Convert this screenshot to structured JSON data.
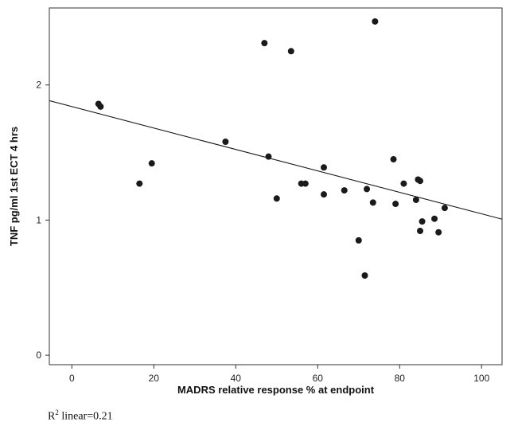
{
  "chart_data": {
    "type": "scatter",
    "xlabel": "MADRS relative response % at endpoint",
    "ylabel": "TNF pg/ml 1st ECT 4 hrs",
    "xlim": [
      -5.5,
      105
    ],
    "ylim": [
      -0.07,
      2.57
    ],
    "xticks": [
      0,
      20,
      40,
      60,
      80,
      100
    ],
    "yticks": [
      0,
      1,
      2
    ],
    "grid": false,
    "series": [
      {
        "points": [
          [
            6.5,
            1.86
          ],
          [
            7.0,
            1.84
          ],
          [
            16.5,
            1.27
          ],
          [
            19.5,
            1.42
          ],
          [
            37.5,
            1.58
          ],
          [
            47.0,
            2.31
          ],
          [
            48.0,
            1.47
          ],
          [
            50.0,
            1.16
          ],
          [
            53.5,
            2.25
          ],
          [
            56.0,
            1.27
          ],
          [
            57.0,
            1.27
          ],
          [
            61.5,
            1.39
          ],
          [
            61.5,
            1.19
          ],
          [
            66.5,
            1.22
          ],
          [
            70.0,
            0.85
          ],
          [
            71.5,
            0.59
          ],
          [
            72.0,
            1.23
          ],
          [
            73.5,
            1.13
          ],
          [
            74.0,
            2.47
          ],
          [
            78.5,
            1.45
          ],
          [
            79.0,
            1.12
          ],
          [
            81.0,
            1.27
          ],
          [
            84.0,
            1.15
          ],
          [
            84.5,
            1.3
          ],
          [
            85.0,
            1.29
          ],
          [
            85.0,
            0.92
          ],
          [
            85.5,
            0.99
          ],
          [
            88.5,
            1.01
          ],
          [
            89.5,
            0.91
          ],
          [
            91.0,
            1.09
          ]
        ]
      }
    ],
    "fit_line": {
      "x": [
        -5.5,
        105
      ],
      "y": [
        1.884,
        1.007
      ]
    },
    "r2_label": {
      "base": "R",
      "sup": "2",
      "text": " linear=0.21"
    },
    "colors": {
      "point": "#1a1a1a",
      "line": "#1a1a1a",
      "axis": "#333333"
    }
  }
}
